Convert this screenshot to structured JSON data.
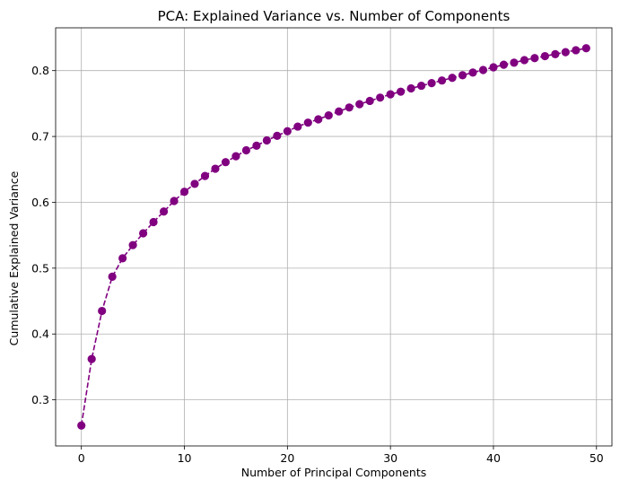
{
  "chart_data": {
    "type": "line",
    "title": "PCA: Explained Variance vs. Number of Components",
    "xlabel": "Number of Principal Components",
    "ylabel": "Cumulative Explained Variance",
    "xlim": [
      -2.5,
      51.5
    ],
    "ylim": [
      0.23,
      0.865
    ],
    "xticks": [
      0,
      10,
      20,
      30,
      40,
      50
    ],
    "yticks": [
      0.3,
      0.4,
      0.5,
      0.6,
      0.7,
      0.8
    ],
    "xtick_labels": [
      "0",
      "10",
      "20",
      "30",
      "40",
      "50"
    ],
    "ytick_labels": [
      "0.3",
      "0.4",
      "0.5",
      "0.6",
      "0.7",
      "0.8"
    ],
    "grid": true,
    "line_style": "dashed",
    "marker": "circle",
    "color": "#800080",
    "series": [
      {
        "x": [
          0,
          1,
          2,
          3,
          4,
          5,
          6,
          7,
          8,
          9,
          10,
          11,
          12,
          13,
          14,
          15,
          16,
          17,
          18,
          19,
          20,
          21,
          22,
          23,
          24,
          25,
          26,
          27,
          28,
          29,
          30,
          31,
          32,
          33,
          34,
          35,
          36,
          37,
          38,
          39,
          40,
          41,
          42,
          43,
          44,
          45,
          46,
          47,
          48,
          49
        ],
        "values": [
          0.261,
          0.362,
          0.435,
          0.487,
          0.515,
          0.535,
          0.553,
          0.57,
          0.586,
          0.602,
          0.616,
          0.628,
          0.64,
          0.651,
          0.661,
          0.67,
          0.679,
          0.686,
          0.694,
          0.701,
          0.708,
          0.715,
          0.721,
          0.726,
          0.732,
          0.738,
          0.744,
          0.749,
          0.754,
          0.759,
          0.764,
          0.768,
          0.773,
          0.777,
          0.781,
          0.785,
          0.789,
          0.793,
          0.797,
          0.801,
          0.805,
          0.809,
          0.812,
          0.816,
          0.819,
          0.822,
          0.825,
          0.828,
          0.831,
          0.834
        ]
      }
    ]
  }
}
